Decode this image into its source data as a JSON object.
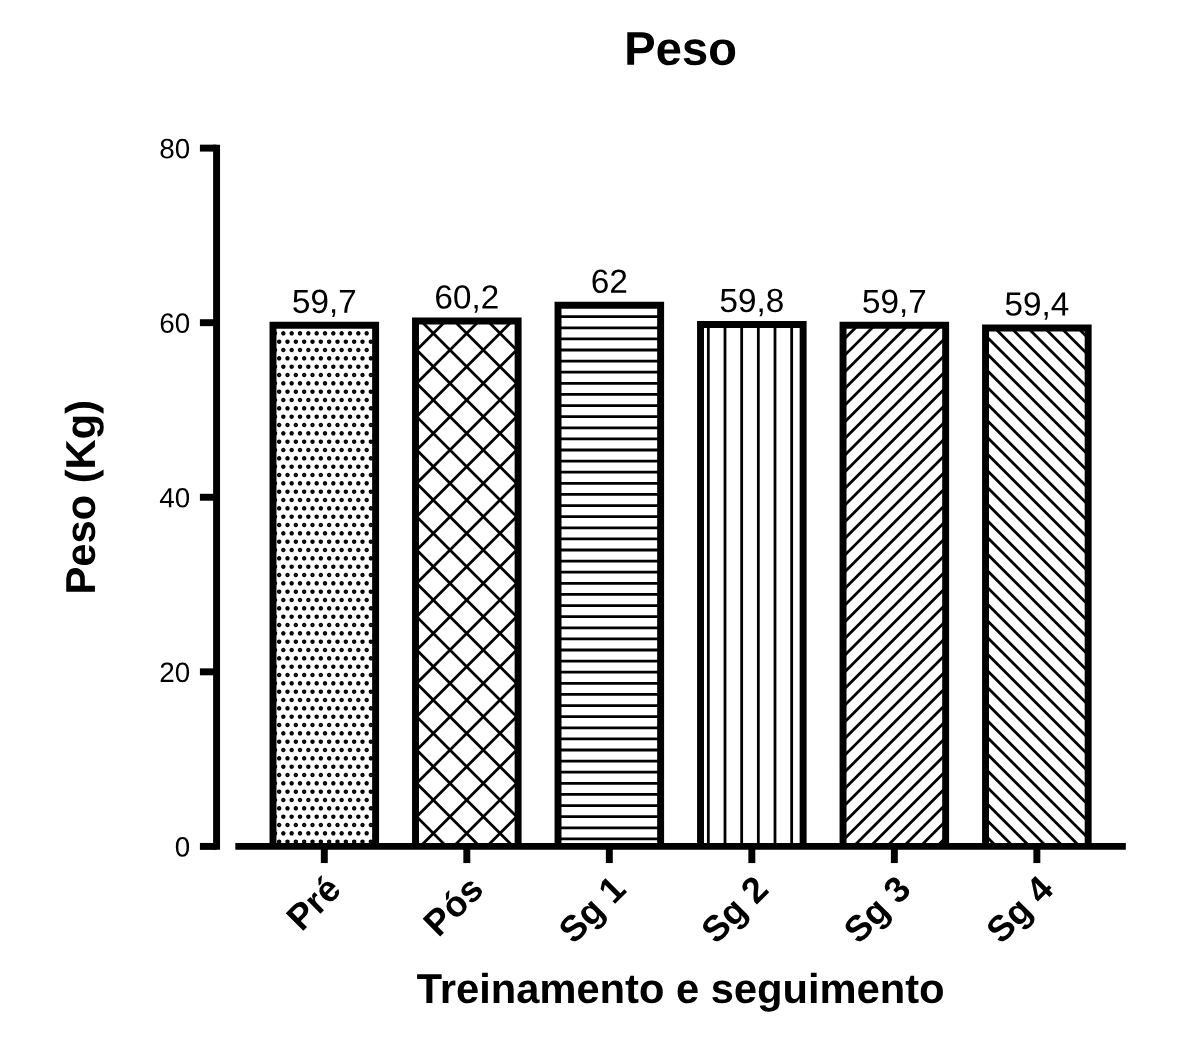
{
  "chart_data": {
    "type": "bar",
    "title": "Peso",
    "xlabel": "Treinamento e seguimento",
    "ylabel": "Peso (Kg)",
    "categories": [
      "Pré",
      "Pós",
      "Sg 1",
      "Sg 2",
      "Sg 3",
      "Sg 4"
    ],
    "values": [
      59.7,
      60.2,
      62,
      59.8,
      59.7,
      59.4
    ],
    "value_labels": [
      "59,7",
      "60,2",
      "62",
      "59,8",
      "59,7",
      "59,4"
    ],
    "colors": [
      "#000000",
      "#000000",
      "#000000",
      "#000000",
      "#000000",
      "#000000"
    ],
    "ylim": [
      0,
      80
    ],
    "yticks": [
      0,
      20,
      40,
      60,
      80
    ],
    "grid": false,
    "legend": false
  }
}
